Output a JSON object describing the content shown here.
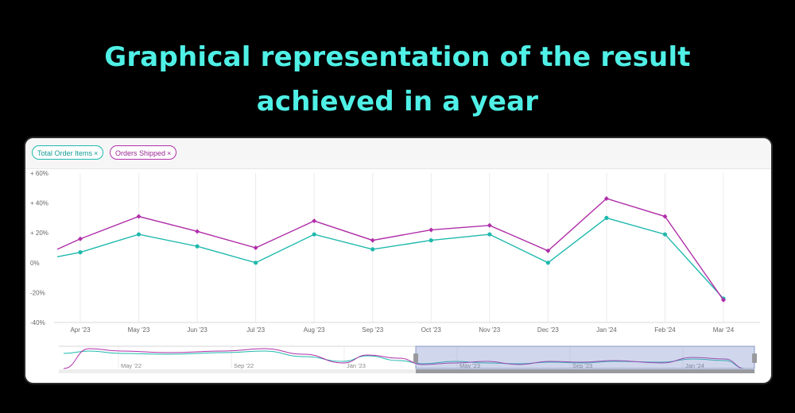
{
  "headline": {
    "line1": "Graphical representation of the result",
    "line2": "achieved in a year"
  },
  "legend_chips": [
    {
      "label": "Total Order Items",
      "close": "×",
      "color": "#1fb9ad"
    },
    {
      "label": "Orders Shipped",
      "close": "×",
      "color": "#b02fa9"
    }
  ],
  "chart_data": {
    "type": "line",
    "ylabel_ticks": [
      "+ 60%",
      "+ 40%",
      "+ 20%",
      "0%",
      "-20%",
      "-40%"
    ],
    "ylim": [
      -40,
      60
    ],
    "categories": [
      "Apr '23",
      "May '23",
      "Jun '23",
      "Jul '23",
      "Aug '23",
      "Sep '23",
      "Oct '23",
      "Nov '23",
      "Dec '23",
      "Jan '24",
      "Feb '24",
      "Mar '24"
    ],
    "start_values": {
      "Total Order Items": 4,
      "Orders Shipped": 9
    },
    "series": [
      {
        "name": "Total Order Items",
        "color": "#1fb9ad",
        "values": [
          7,
          19,
          11,
          0,
          19,
          9,
          15,
          19,
          0,
          30,
          19,
          -24
        ]
      },
      {
        "name": "Orders Shipped",
        "color": "#b02fa9",
        "values": [
          16,
          31,
          21,
          10,
          28,
          15,
          22,
          25,
          8,
          43,
          31,
          -25
        ]
      }
    ],
    "grid": true
  },
  "navigator": {
    "labels": [
      "May '22",
      "Sep '22",
      "Jan '23",
      "May '23",
      "Sep '23",
      "Jan '24"
    ],
    "selection": "Apr '23 – Mar '24"
  }
}
